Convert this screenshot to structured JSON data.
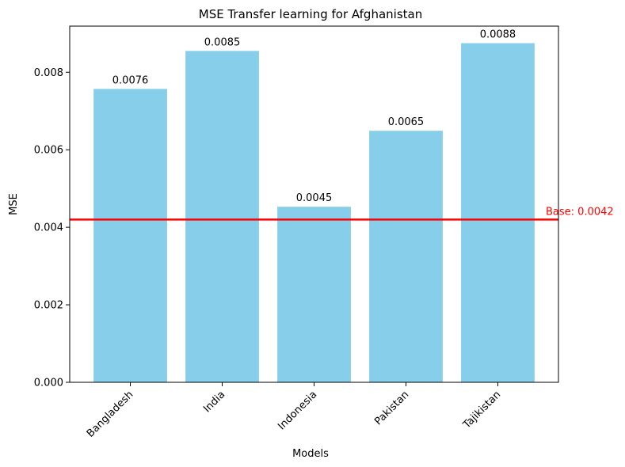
{
  "chart_data": {
    "type": "bar",
    "title": "MSE Transfer learning for Afghanistan",
    "xlabel": "Models",
    "ylabel": "MSE",
    "categories": [
      "Bangladesh",
      "India",
      "Indonesia",
      "Pakistan",
      "Tajikistan"
    ],
    "values": [
      0.00757,
      0.00855,
      0.00453,
      0.00649,
      0.00875
    ],
    "value_labels": [
      "0.0076",
      "0.0085",
      "0.0045",
      "0.0065",
      "0.0088"
    ],
    "yticks": [
      0.0,
      0.002,
      0.004,
      0.006,
      0.008
    ],
    "ytick_labels": [
      "0.000",
      "0.002",
      "0.004",
      "0.006",
      "0.008"
    ],
    "ylim": [
      0,
      0.00919
    ],
    "baseline": {
      "value": 0.0042,
      "label": "Base: 0.0042",
      "color": "#ff0000"
    },
    "bar_color": "#87ceeb",
    "grid": false,
    "x_tick_rotation": 45
  }
}
